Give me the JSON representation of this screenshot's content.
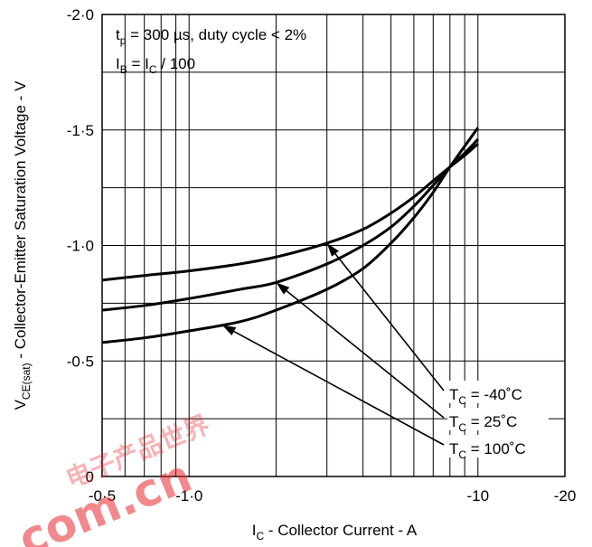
{
  "chart_data": {
    "type": "line",
    "title": "",
    "xlabel": {
      "symbol": "I",
      "subscript": "C",
      "text": " - Collector Current - A"
    },
    "ylabel": {
      "symbol": "V",
      "subscript": "CE(sat)",
      "text": " - Collector-Emitter Saturation Voltage - V"
    },
    "x_scale": "log",
    "xlim": [
      -0.5,
      -20
    ],
    "ylim": [
      0,
      -2.0
    ],
    "grid": true,
    "x_ticks": [
      {
        "value": -0.5,
        "label": "-0·5"
      },
      {
        "value": -1,
        "label": "-1·0"
      },
      {
        "value": -10,
        "label": "-10"
      },
      {
        "value": -20,
        "label": "-20"
      }
    ],
    "y_ticks": [
      {
        "value": 0,
        "label": "0"
      },
      {
        "value": -0.5,
        "label": "-0·5"
      },
      {
        "value": -1.0,
        "label": "-1·0"
      },
      {
        "value": -1.5,
        "label": "-1·5"
      },
      {
        "value": -2.0,
        "label": "-2·0"
      }
    ],
    "conditions": [
      {
        "symbol": "t",
        "subscript": "p",
        "text": " = 300 µs, duty cycle < 2%"
      },
      {
        "symbol": "I",
        "subscript": "B",
        "text": " = I",
        "symbol2_subscript": "C",
        "text2": " / 100"
      }
    ],
    "series": [
      {
        "name": "-40˚C",
        "label_symbol": "T",
        "label_subscript": "C",
        "label_text": " =  -40˚C",
        "x": [
          -0.5,
          -0.7,
          -1.0,
          -1.5,
          -2.0,
          -3.0,
          -4.0,
          -5.0,
          -6.0,
          -7.0,
          -8.0,
          -9.0,
          -10.0
        ],
        "y": [
          -0.85,
          -0.87,
          -0.89,
          -0.92,
          -0.95,
          -1.01,
          -1.07,
          -1.14,
          -1.21,
          -1.28,
          -1.34,
          -1.39,
          -1.44
        ]
      },
      {
        "name": "25˚C",
        "label_symbol": "T",
        "label_subscript": "C",
        "label_text": " =   25˚C",
        "x": [
          -0.5,
          -0.7,
          -1.0,
          -1.5,
          -2.0,
          -3.0,
          -4.0,
          -5.0,
          -6.0,
          -7.0,
          -8.0,
          -9.0,
          -10.0
        ],
        "y": [
          -0.72,
          -0.74,
          -0.77,
          -0.81,
          -0.84,
          -0.92,
          -1.0,
          -1.08,
          -1.17,
          -1.26,
          -1.34,
          -1.4,
          -1.46
        ]
      },
      {
        "name": "100˚C",
        "label_symbol": "T",
        "label_subscript": "C",
        "label_text": " = 100˚C",
        "x": [
          -0.5,
          -0.7,
          -1.0,
          -1.5,
          -2.0,
          -3.0,
          -4.0,
          -5.0,
          -6.0,
          -7.0,
          -8.0,
          -9.0,
          -10.0
        ],
        "y": [
          -0.58,
          -0.6,
          -0.63,
          -0.67,
          -0.72,
          -0.81,
          -0.9,
          -1.01,
          -1.12,
          -1.23,
          -1.34,
          -1.43,
          -1.51
        ]
      }
    ]
  },
  "watermark": {
    "chinese": "电子产品世界",
    "domain": ".com.cn",
    "color": "#e8262b"
  }
}
